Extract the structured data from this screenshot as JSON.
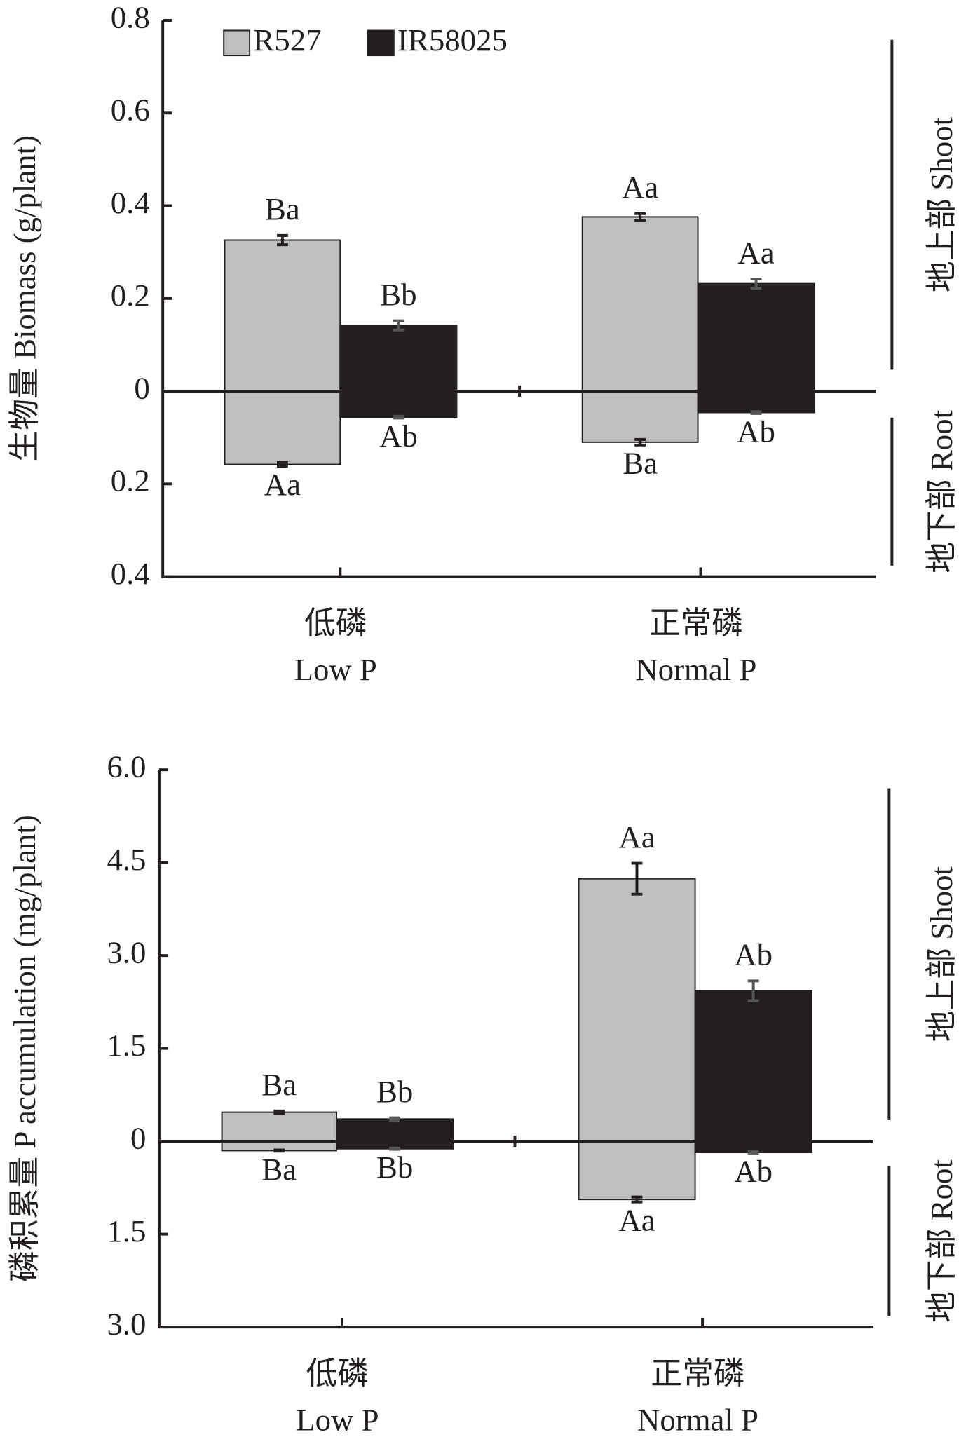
{
  "chart_data": [
    {
      "type": "bar",
      "y_label": "生物量 Biomass (g/plant)",
      "categories": [
        "低磷",
        "正常磷"
      ],
      "categories_en": [
        "Low P",
        "Normal P"
      ],
      "shoot_label": "地上部 Shoot",
      "root_label": "地下部 Root",
      "ylim": [
        -0.4,
        0.8
      ],
      "yticks": [
        0.8,
        0.6,
        0.4,
        0.2,
        0,
        {
          "value": -0.2,
          "label": "0.2"
        },
        {
          "value": -0.4,
          "label": "0.4"
        }
      ],
      "series": [
        {
          "name": "R527",
          "color": "#bfbfbf",
          "values": [
            0.326,
            0.376
          ],
          "errors": [
            0.01,
            0.007
          ],
          "letters": [
            "Ba",
            "Aa"
          ],
          "root_values": [
            -0.158,
            -0.11
          ],
          "root_errors": [
            0.004,
            0.006
          ],
          "root_letters": [
            "Aa",
            "Ba"
          ]
        },
        {
          "name": "IR58025",
          "color": "#231f20",
          "values": [
            0.142,
            0.232
          ],
          "errors": [
            0.01,
            0.01
          ],
          "letters": [
            "Bb",
            "Aa"
          ],
          "root_values": [
            -0.056,
            -0.046
          ],
          "root_errors": [
            0.002,
            0.002
          ],
          "root_letters": [
            "Ab",
            "Ab"
          ]
        }
      ]
    },
    {
      "type": "bar",
      "y_label": "磷积累量 P accumulation (mg/plant)",
      "categories": [
        "低磷",
        "正常磷"
      ],
      "categories_en": [
        "Low P",
        "Normal P"
      ],
      "shoot_label": "地上部 Shoot",
      "root_label": "地下部 Root",
      "ylim": [
        -3,
        6
      ],
      "yticks": [
        {
          "value": 6,
          "label": "6.0"
        },
        4.5,
        {
          "value": 3,
          "label": "3.0"
        },
        1.5,
        0,
        {
          "value": -1.5,
          "label": "1.5"
        },
        {
          "value": -3,
          "label": "3.0"
        }
      ],
      "series": [
        {
          "name": "R527",
          "color": "#bfbfbf",
          "values": [
            0.47,
            4.24
          ],
          "errors": [
            0.02,
            0.25
          ],
          "letters": [
            "Ba",
            "Aa"
          ],
          "root_values": [
            -0.15,
            -0.94
          ],
          "root_errors": [
            0.01,
            0.04
          ],
          "root_letters": [
            "Ba",
            "Aa"
          ]
        },
        {
          "name": "IR58025",
          "color": "#231f20",
          "values": [
            0.36,
            2.43
          ],
          "errors": [
            0.02,
            0.16
          ],
          "letters": [
            "Bb",
            "Ab"
          ],
          "root_values": [
            -0.12,
            -0.18
          ],
          "root_errors": [
            0.01,
            0.01
          ],
          "root_letters": [
            "Bb",
            "Ab"
          ]
        }
      ]
    }
  ]
}
